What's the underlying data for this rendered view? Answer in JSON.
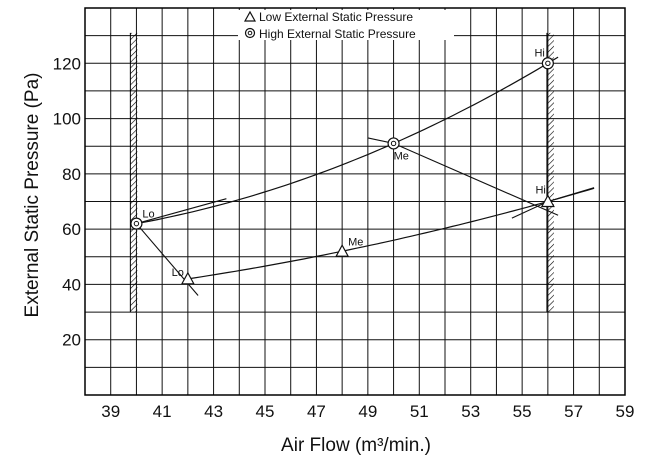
{
  "chart_data": {
    "type": "line",
    "xlabel": "Air Flow (m³/min.)",
    "ylabel": "External Static Pressure (Pa)",
    "xlim": [
      38,
      59
    ],
    "ylim": [
      0,
      140
    ],
    "xticks": [
      "39",
      "41",
      "43",
      "45",
      "47",
      "49",
      "51",
      "53",
      "55",
      "57",
      "59"
    ],
    "yticks": [
      "20",
      "40",
      "60",
      "80",
      "100",
      "120"
    ],
    "grid": true,
    "legend_position": "top-center",
    "series": [
      {
        "name": "Low External Static Pressure",
        "marker": "triangle",
        "x": [
          42,
          48,
          56
        ],
        "y": [
          42,
          52,
          70
        ],
        "point_labels": [
          "Lo",
          "Me",
          "Hi"
        ]
      },
      {
        "name": "High External Static Pressure",
        "marker": "double-circle",
        "x": [
          40,
          50,
          56
        ],
        "y": [
          62,
          91,
          120
        ],
        "point_labels": [
          "Lo",
          "Me",
          "Hi"
        ]
      }
    ],
    "speed_lines": [
      {
        "label": "Lo",
        "x": [
          43.5,
          40,
          42.4
        ],
        "y": [
          71,
          62,
          36
        ]
      },
      {
        "label": "Me",
        "x": [
          49,
          50,
          56.4
        ],
        "y": [
          93,
          91,
          65
        ]
      },
      {
        "label": "Hi",
        "x": [
          54.6,
          56,
          57.8
        ],
        "y": [
          64,
          70,
          75
        ]
      }
    ],
    "flow_limits": [
      {
        "x": 39.9,
        "y": [
          30,
          131
        ]
      },
      {
        "x": 56.1,
        "y": [
          30,
          131
        ]
      }
    ]
  }
}
